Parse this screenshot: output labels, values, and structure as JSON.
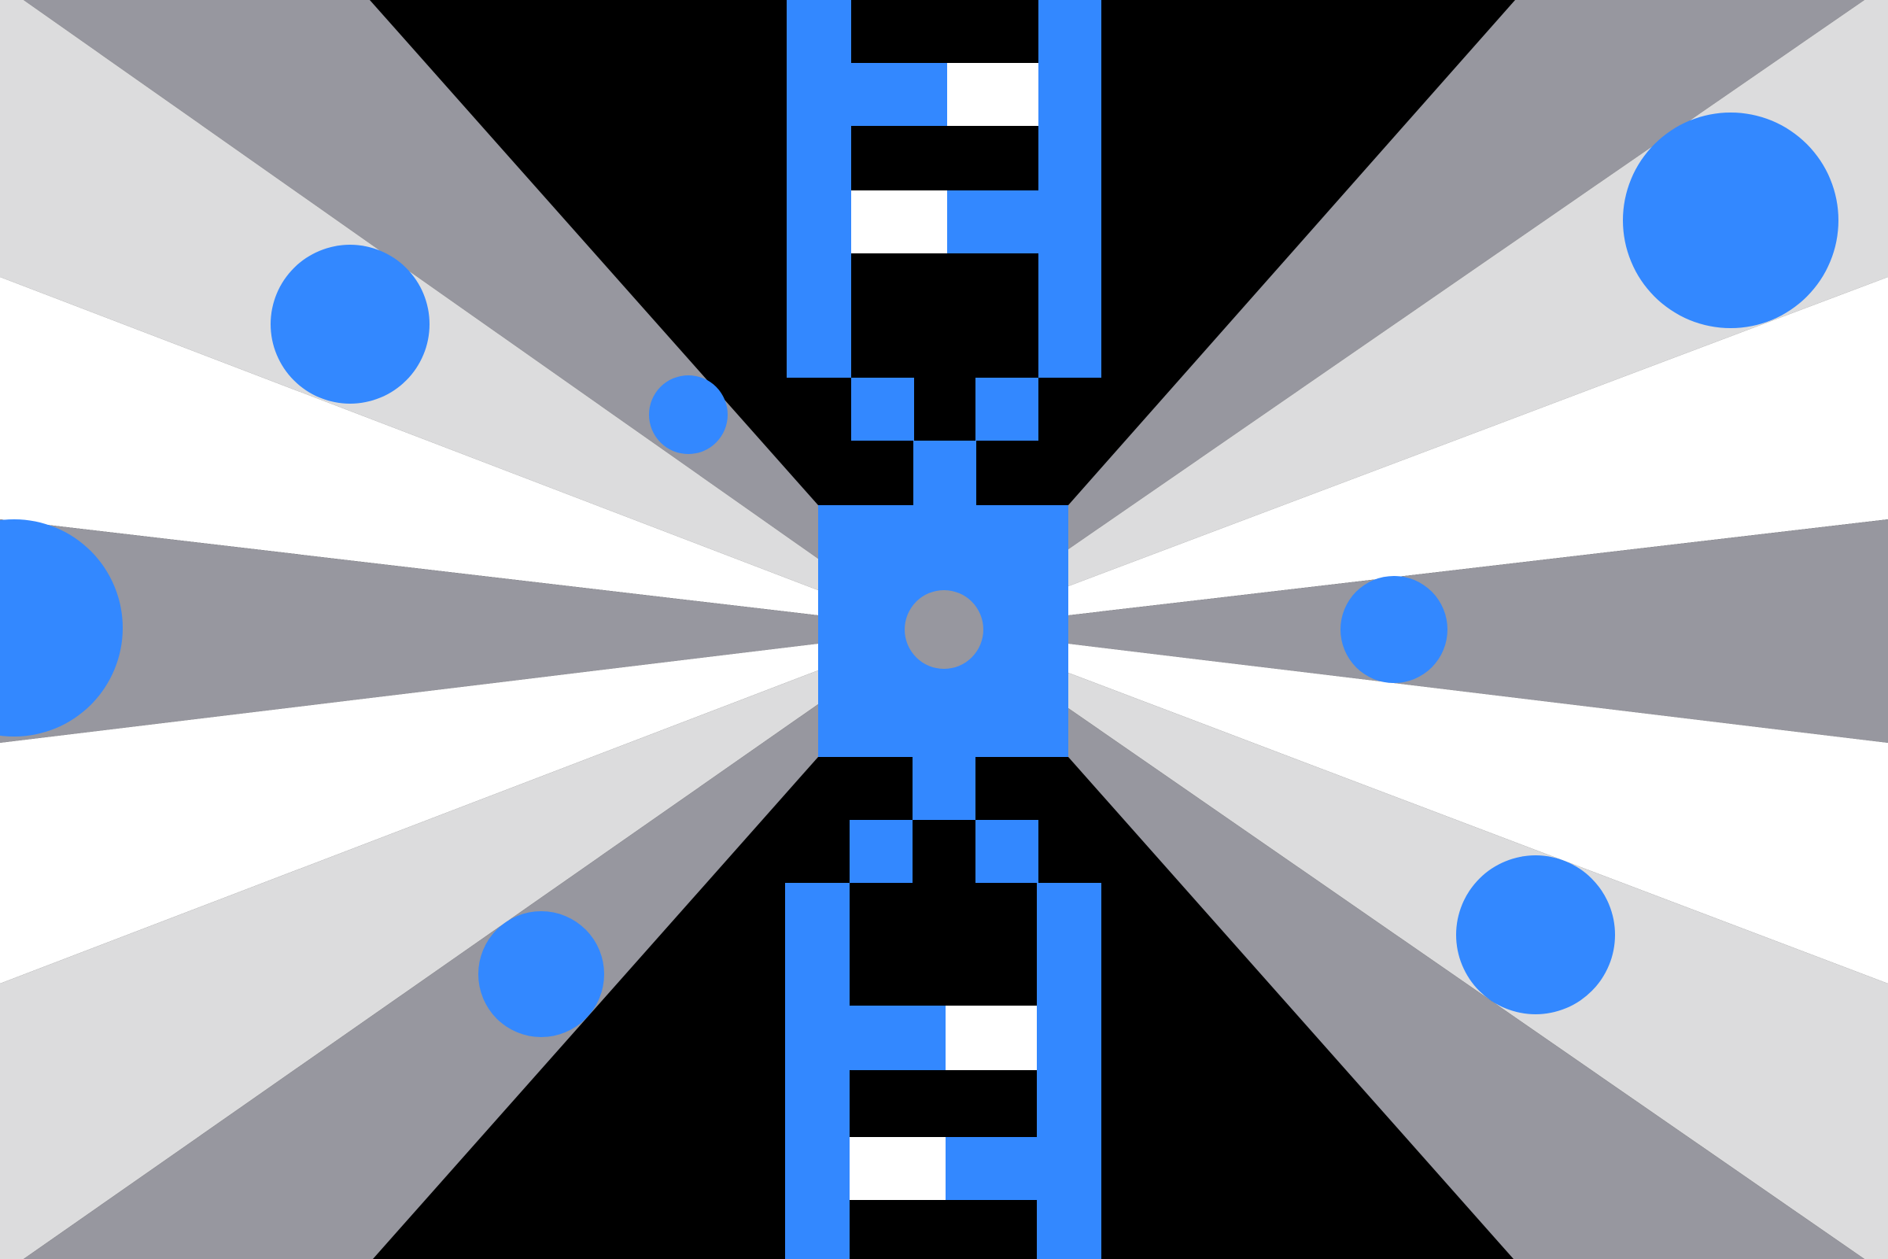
{
  "artwork": {
    "palette": {
      "background": "#000000",
      "ray_dark": "#97979f",
      "ray_light": "#dcdcdd",
      "ray_white": "#ffffff",
      "accent_blue": "#3388ff",
      "pill_white": "#ffffff",
      "hub_dot": "#97979f"
    }
  }
}
